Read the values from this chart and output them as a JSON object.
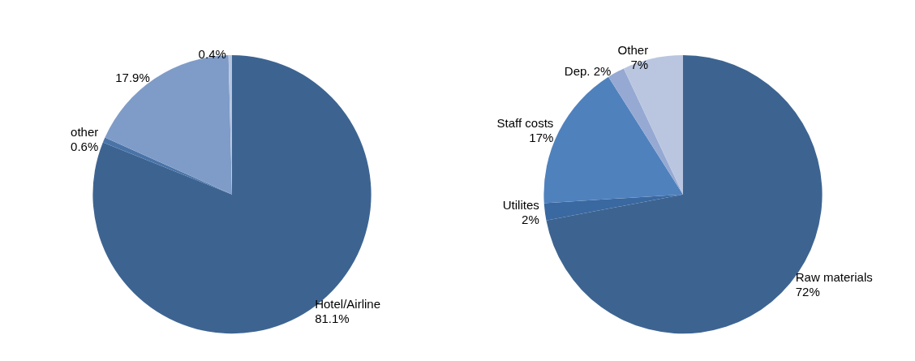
{
  "chart_data": [
    {
      "type": "pie",
      "categories": [
        "Hotel/Airline",
        "other",
        null,
        null
      ],
      "values": [
        81.1,
        0.6,
        17.9,
        0.4
      ],
      "colors": [
        "#3d6491",
        "#4a74a8",
        "#7f9cc8",
        "#b8c6e0"
      ],
      "value_labels": [
        "81.1%",
        "0.6%",
        "17.9%",
        "0.4%"
      ],
      "legend": false
    },
    {
      "type": "pie",
      "categories": [
        "Raw materials",
        "Utilites",
        "Staff costs",
        "Dep.",
        "Other"
      ],
      "values": [
        72,
        2,
        17,
        2,
        7
      ],
      "colors": [
        "#3d6491",
        "#3a68a0",
        "#4f81bd",
        "#95a9d3",
        "#bac6e0"
      ],
      "value_labels": [
        "72%",
        "2%",
        "17%",
        "2%",
        "7%"
      ],
      "legend": false
    }
  ]
}
